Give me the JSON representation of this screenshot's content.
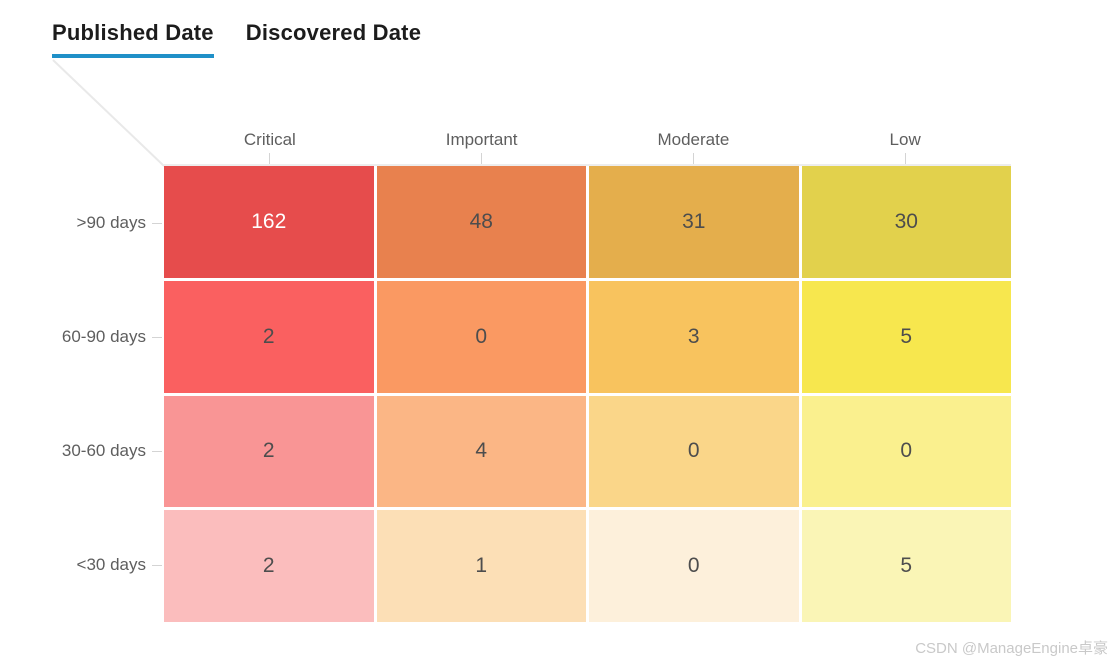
{
  "tabs": {
    "published_label": "Published Date",
    "discovered_label": "Discovered Date",
    "active_tab": "Published Date",
    "accent_color": "#1F90C8"
  },
  "watermark_text": "CSDN @ManageEngine卓豪",
  "chart_data": {
    "type": "heatmap",
    "title": "",
    "columns": [
      "Critical",
      "Important",
      "Moderate",
      "Low"
    ],
    "rows": [
      ">90 days",
      "60-90 days",
      "30-60 days",
      "<30 days"
    ],
    "values": [
      [
        162,
        48,
        31,
        30
      ],
      [
        2,
        0,
        3,
        5
      ],
      [
        2,
        4,
        0,
        0
      ],
      [
        2,
        1,
        0,
        5
      ]
    ],
    "cell_colors": [
      [
        "#E64C4C",
        "#E8814E",
        "#E4AE4C",
        "#E2D14C"
      ],
      [
        "#FA6060",
        "#FA9962",
        "#F8C35E",
        "#F7E74E"
      ],
      [
        "#F99595",
        "#FBB685",
        "#FAD689",
        "#FAF08E"
      ],
      [
        "#FBBDBD",
        "#FCDFB6",
        "#FDF0DB",
        "#FAF5B6"
      ]
    ],
    "value_text_colors": [
      [
        "#ffffff",
        "#4d4d4d",
        "#4d4d4d",
        "#4d4d4d"
      ],
      [
        "#4d4d4d",
        "#4d4d4d",
        "#4d4d4d",
        "#4d4d4d"
      ],
      [
        "#4d4d4d",
        "#4d4d4d",
        "#4d4d4d",
        "#4d4d4d"
      ],
      [
        "#4d4d4d",
        "#4d4d4d",
        "#4d4d4d",
        "#4d4d4d"
      ]
    ],
    "legend": false,
    "grid_gap_color": "#ffffff"
  }
}
